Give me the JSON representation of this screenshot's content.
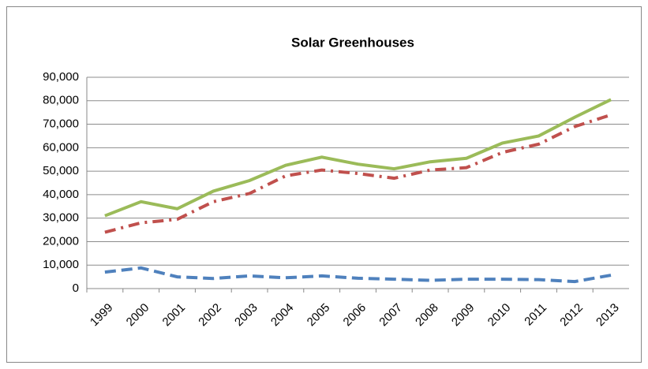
{
  "chart_data": {
    "type": "line",
    "title": "Solar Greenhouses",
    "categories": [
      "1999",
      "2000",
      "2001",
      "2002",
      "2003",
      "2004",
      "2005",
      "2006",
      "2007",
      "2008",
      "2009",
      "2010",
      "2011",
      "2012",
      "2013"
    ],
    "series": [
      {
        "color": "#9bbb59",
        "dash": "solid",
        "values": [
          31000,
          37000,
          34000,
          41500,
          46000,
          52500,
          56000,
          53000,
          51000,
          54000,
          55500,
          62000,
          65000,
          73000,
          80500
        ]
      },
      {
        "color": "#c0504d",
        "dash": "dashdot",
        "values": [
          24000,
          28000,
          29500,
          37000,
          40500,
          48000,
          50500,
          49000,
          47000,
          50500,
          51500,
          58000,
          61500,
          69000,
          74000
        ]
      },
      {
        "color": "#4f81bd",
        "dash": "dashed",
        "values": [
          7000,
          8800,
          5000,
          4300,
          5400,
          4600,
          5400,
          4400,
          4000,
          3500,
          4000,
          4000,
          3800,
          3000,
          5700
        ]
      }
    ],
    "ylim": [
      0,
      90000
    ],
    "yticks": [
      0,
      {
        "value": 10000,
        "label": "10,000"
      },
      {
        "value": 20000,
        "label": "20,000"
      },
      {
        "value": 30000,
        "label": "30,000"
      },
      {
        "value": 40000,
        "label": "40,000"
      },
      {
        "value": 50000,
        "label": "50,000"
      },
      {
        "value": 60000,
        "label": "60,000"
      },
      {
        "value": 70000,
        "label": "70,000"
      },
      {
        "value": 80000,
        "label": "80,000"
      },
      {
        "value": 90000,
        "label": "90,000"
      }
    ],
    "grid": true
  }
}
